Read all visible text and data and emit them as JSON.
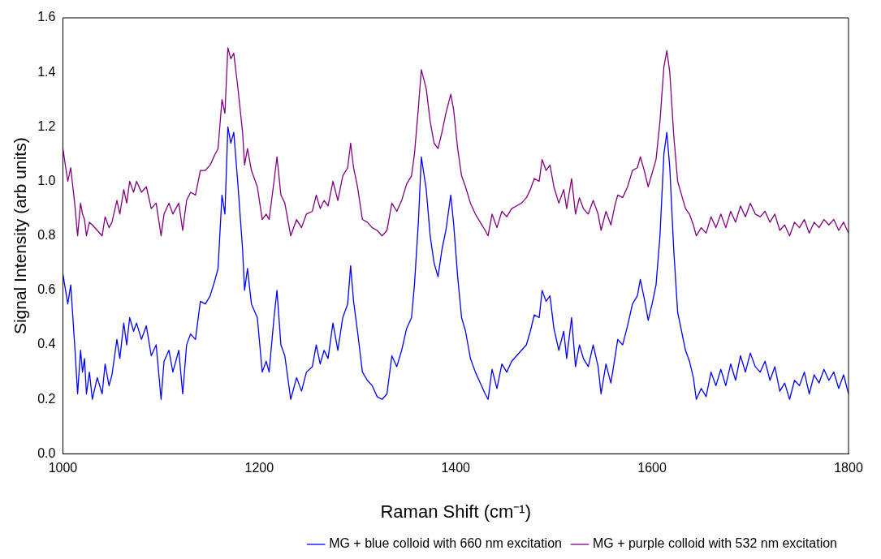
{
  "chart_data": {
    "type": "line",
    "xlabel": "Raman Shift (cm⁻¹)",
    "ylabel": "Signal Intensity (arb units)",
    "xlim": [
      1000,
      1800
    ],
    "xticks": [
      1000,
      1200,
      1400,
      1600,
      1800
    ],
    "ylim": [
      0,
      1.6
    ],
    "yticks": [
      {
        "value": 0,
        "label": "0.0"
      },
      0.2,
      0.4,
      0.6,
      0.8,
      {
        "value": 1,
        "label": "1.0"
      },
      1.2,
      1.4,
      1.6
    ],
    "grid": false,
    "legend": "bottom right",
    "marker": "none",
    "line_style": "solid",
    "x": [
      1000,
      1005,
      1008,
      1012,
      1015,
      1018,
      1020,
      1022,
      1024,
      1027,
      1030,
      1035,
      1040,
      1043,
      1047,
      1050,
      1055,
      1058,
      1062,
      1065,
      1068,
      1072,
      1075,
      1080,
      1085,
      1090,
      1095,
      1100,
      1103,
      1108,
      1112,
      1118,
      1122,
      1126,
      1130,
      1135,
      1140,
      1145,
      1150,
      1155,
      1158,
      1162,
      1165,
      1168,
      1171,
      1174,
      1178,
      1183,
      1185,
      1188,
      1192,
      1198,
      1203,
      1207,
      1210,
      1215,
      1218,
      1222,
      1226,
      1232,
      1238,
      1243,
      1248,
      1254,
      1258,
      1262,
      1266,
      1270,
      1275,
      1280,
      1285,
      1290,
      1293,
      1296,
      1300,
      1305,
      1310,
      1315,
      1320,
      1325,
      1330,
      1335,
      1340,
      1345,
      1350,
      1355,
      1358,
      1362,
      1365,
      1370,
      1374,
      1378,
      1382,
      1386,
      1390,
      1395,
      1398,
      1402,
      1406,
      1410,
      1415,
      1420,
      1425,
      1430,
      1433,
      1437,
      1442,
      1447,
      1452,
      1457,
      1462,
      1467,
      1472,
      1476,
      1480,
      1485,
      1488,
      1492,
      1496,
      1500,
      1505,
      1510,
      1513,
      1518,
      1522,
      1526,
      1530,
      1535,
      1540,
      1545,
      1548,
      1553,
      1558,
      1562,
      1565,
      1570,
      1575,
      1580,
      1585,
      1588,
      1592,
      1596,
      1600,
      1604,
      1608,
      1612,
      1615,
      1618,
      1622,
      1626,
      1630,
      1634,
      1638,
      1642,
      1645,
      1650,
      1655,
      1660,
      1665,
      1670,
      1675,
      1680,
      1685,
      1690,
      1695,
      1700,
      1705,
      1710,
      1715,
      1720,
      1725,
      1730,
      1735,
      1740,
      1745,
      1750,
      1755,
      1760,
      1765,
      1770,
      1775,
      1780,
      1785,
      1790,
      1795,
      1800
    ],
    "series": [
      {
        "name": "MG + blue colloid with 660 nm excitation",
        "color": "#0000ff",
        "values": [
          0.66,
          0.55,
          0.62,
          0.4,
          0.22,
          0.38,
          0.3,
          0.35,
          0.22,
          0.3,
          0.2,
          0.28,
          0.22,
          0.33,
          0.25,
          0.29,
          0.42,
          0.35,
          0.48,
          0.4,
          0.5,
          0.45,
          0.48,
          0.42,
          0.47,
          0.36,
          0.4,
          0.2,
          0.34,
          0.38,
          0.3,
          0.38,
          0.22,
          0.4,
          0.44,
          0.42,
          0.56,
          0.55,
          0.58,
          0.64,
          0.68,
          0.95,
          0.88,
          1.2,
          1.14,
          1.18,
          1.0,
          0.75,
          0.6,
          0.68,
          0.55,
          0.5,
          0.3,
          0.34,
          0.3,
          0.5,
          0.6,
          0.4,
          0.36,
          0.2,
          0.28,
          0.23,
          0.3,
          0.32,
          0.4,
          0.33,
          0.38,
          0.35,
          0.48,
          0.38,
          0.5,
          0.55,
          0.69,
          0.56,
          0.45,
          0.3,
          0.27,
          0.25,
          0.21,
          0.2,
          0.22,
          0.36,
          0.32,
          0.38,
          0.46,
          0.5,
          0.62,
          0.85,
          1.09,
          0.97,
          0.8,
          0.7,
          0.65,
          0.75,
          0.82,
          0.95,
          0.84,
          0.65,
          0.5,
          0.45,
          0.35,
          0.3,
          0.26,
          0.22,
          0.2,
          0.31,
          0.24,
          0.33,
          0.3,
          0.34,
          0.36,
          0.38,
          0.4,
          0.45,
          0.51,
          0.5,
          0.6,
          0.56,
          0.58,
          0.46,
          0.38,
          0.45,
          0.35,
          0.5,
          0.32,
          0.4,
          0.35,
          0.32,
          0.4,
          0.32,
          0.22,
          0.33,
          0.26,
          0.35,
          0.42,
          0.4,
          0.47,
          0.55,
          0.58,
          0.64,
          0.57,
          0.49,
          0.55,
          0.62,
          0.8,
          1.1,
          1.18,
          1.05,
          0.75,
          0.52,
          0.45,
          0.38,
          0.34,
          0.28,
          0.2,
          0.24,
          0.21,
          0.3,
          0.25,
          0.31,
          0.25,
          0.33,
          0.27,
          0.36,
          0.3,
          0.37,
          0.32,
          0.3,
          0.34,
          0.27,
          0.32,
          0.23,
          0.26,
          0.2,
          0.27,
          0.25,
          0.3,
          0.22,
          0.29,
          0.26,
          0.31,
          0.27,
          0.3,
          0.24,
          0.29,
          0.22
        ]
      },
      {
        "name": "MG + purple colloid with 532 nm excitation",
        "color": "#800080",
        "values": [
          1.12,
          1.0,
          1.05,
          0.92,
          0.8,
          0.92,
          0.88,
          0.86,
          0.8,
          0.85,
          0.84,
          0.82,
          0.8,
          0.87,
          0.83,
          0.85,
          0.93,
          0.88,
          0.97,
          0.92,
          1.0,
          0.96,
          1.0,
          0.96,
          0.98,
          0.9,
          0.92,
          0.8,
          0.88,
          0.92,
          0.88,
          0.92,
          0.82,
          0.93,
          0.96,
          0.95,
          1.04,
          1.04,
          1.06,
          1.1,
          1.12,
          1.3,
          1.25,
          1.49,
          1.45,
          1.47,
          1.35,
          1.18,
          1.06,
          1.12,
          1.04,
          0.98,
          0.86,
          0.88,
          0.86,
          1.0,
          1.09,
          0.95,
          0.92,
          0.8,
          0.86,
          0.83,
          0.88,
          0.89,
          0.95,
          0.9,
          0.93,
          0.91,
          1.0,
          0.93,
          1.02,
          1.05,
          1.14,
          1.05,
          0.98,
          0.86,
          0.85,
          0.83,
          0.82,
          0.8,
          0.82,
          0.92,
          0.89,
          0.93,
          0.99,
          1.02,
          1.1,
          1.27,
          1.41,
          1.34,
          1.22,
          1.14,
          1.12,
          1.18,
          1.25,
          1.32,
          1.26,
          1.12,
          1.02,
          0.98,
          0.92,
          0.88,
          0.85,
          0.82,
          0.8,
          0.88,
          0.83,
          0.89,
          0.87,
          0.9,
          0.91,
          0.92,
          0.94,
          0.97,
          1.01,
          1.0,
          1.08,
          1.04,
          1.06,
          0.98,
          0.92,
          0.97,
          0.9,
          1.01,
          0.88,
          0.94,
          0.9,
          0.88,
          0.93,
          0.88,
          0.82,
          0.89,
          0.84,
          0.91,
          0.95,
          0.94,
          0.98,
          1.04,
          1.05,
          1.09,
          1.04,
          0.98,
          1.03,
          1.08,
          1.22,
          1.42,
          1.48,
          1.4,
          1.17,
          1.0,
          0.95,
          0.9,
          0.88,
          0.84,
          0.8,
          0.83,
          0.81,
          0.87,
          0.83,
          0.88,
          0.83,
          0.89,
          0.85,
          0.91,
          0.87,
          0.92,
          0.88,
          0.87,
          0.89,
          0.85,
          0.88,
          0.82,
          0.84,
          0.8,
          0.85,
          0.83,
          0.86,
          0.81,
          0.85,
          0.83,
          0.86,
          0.84,
          0.86,
          0.82,
          0.85,
          0.81
        ]
      }
    ]
  }
}
